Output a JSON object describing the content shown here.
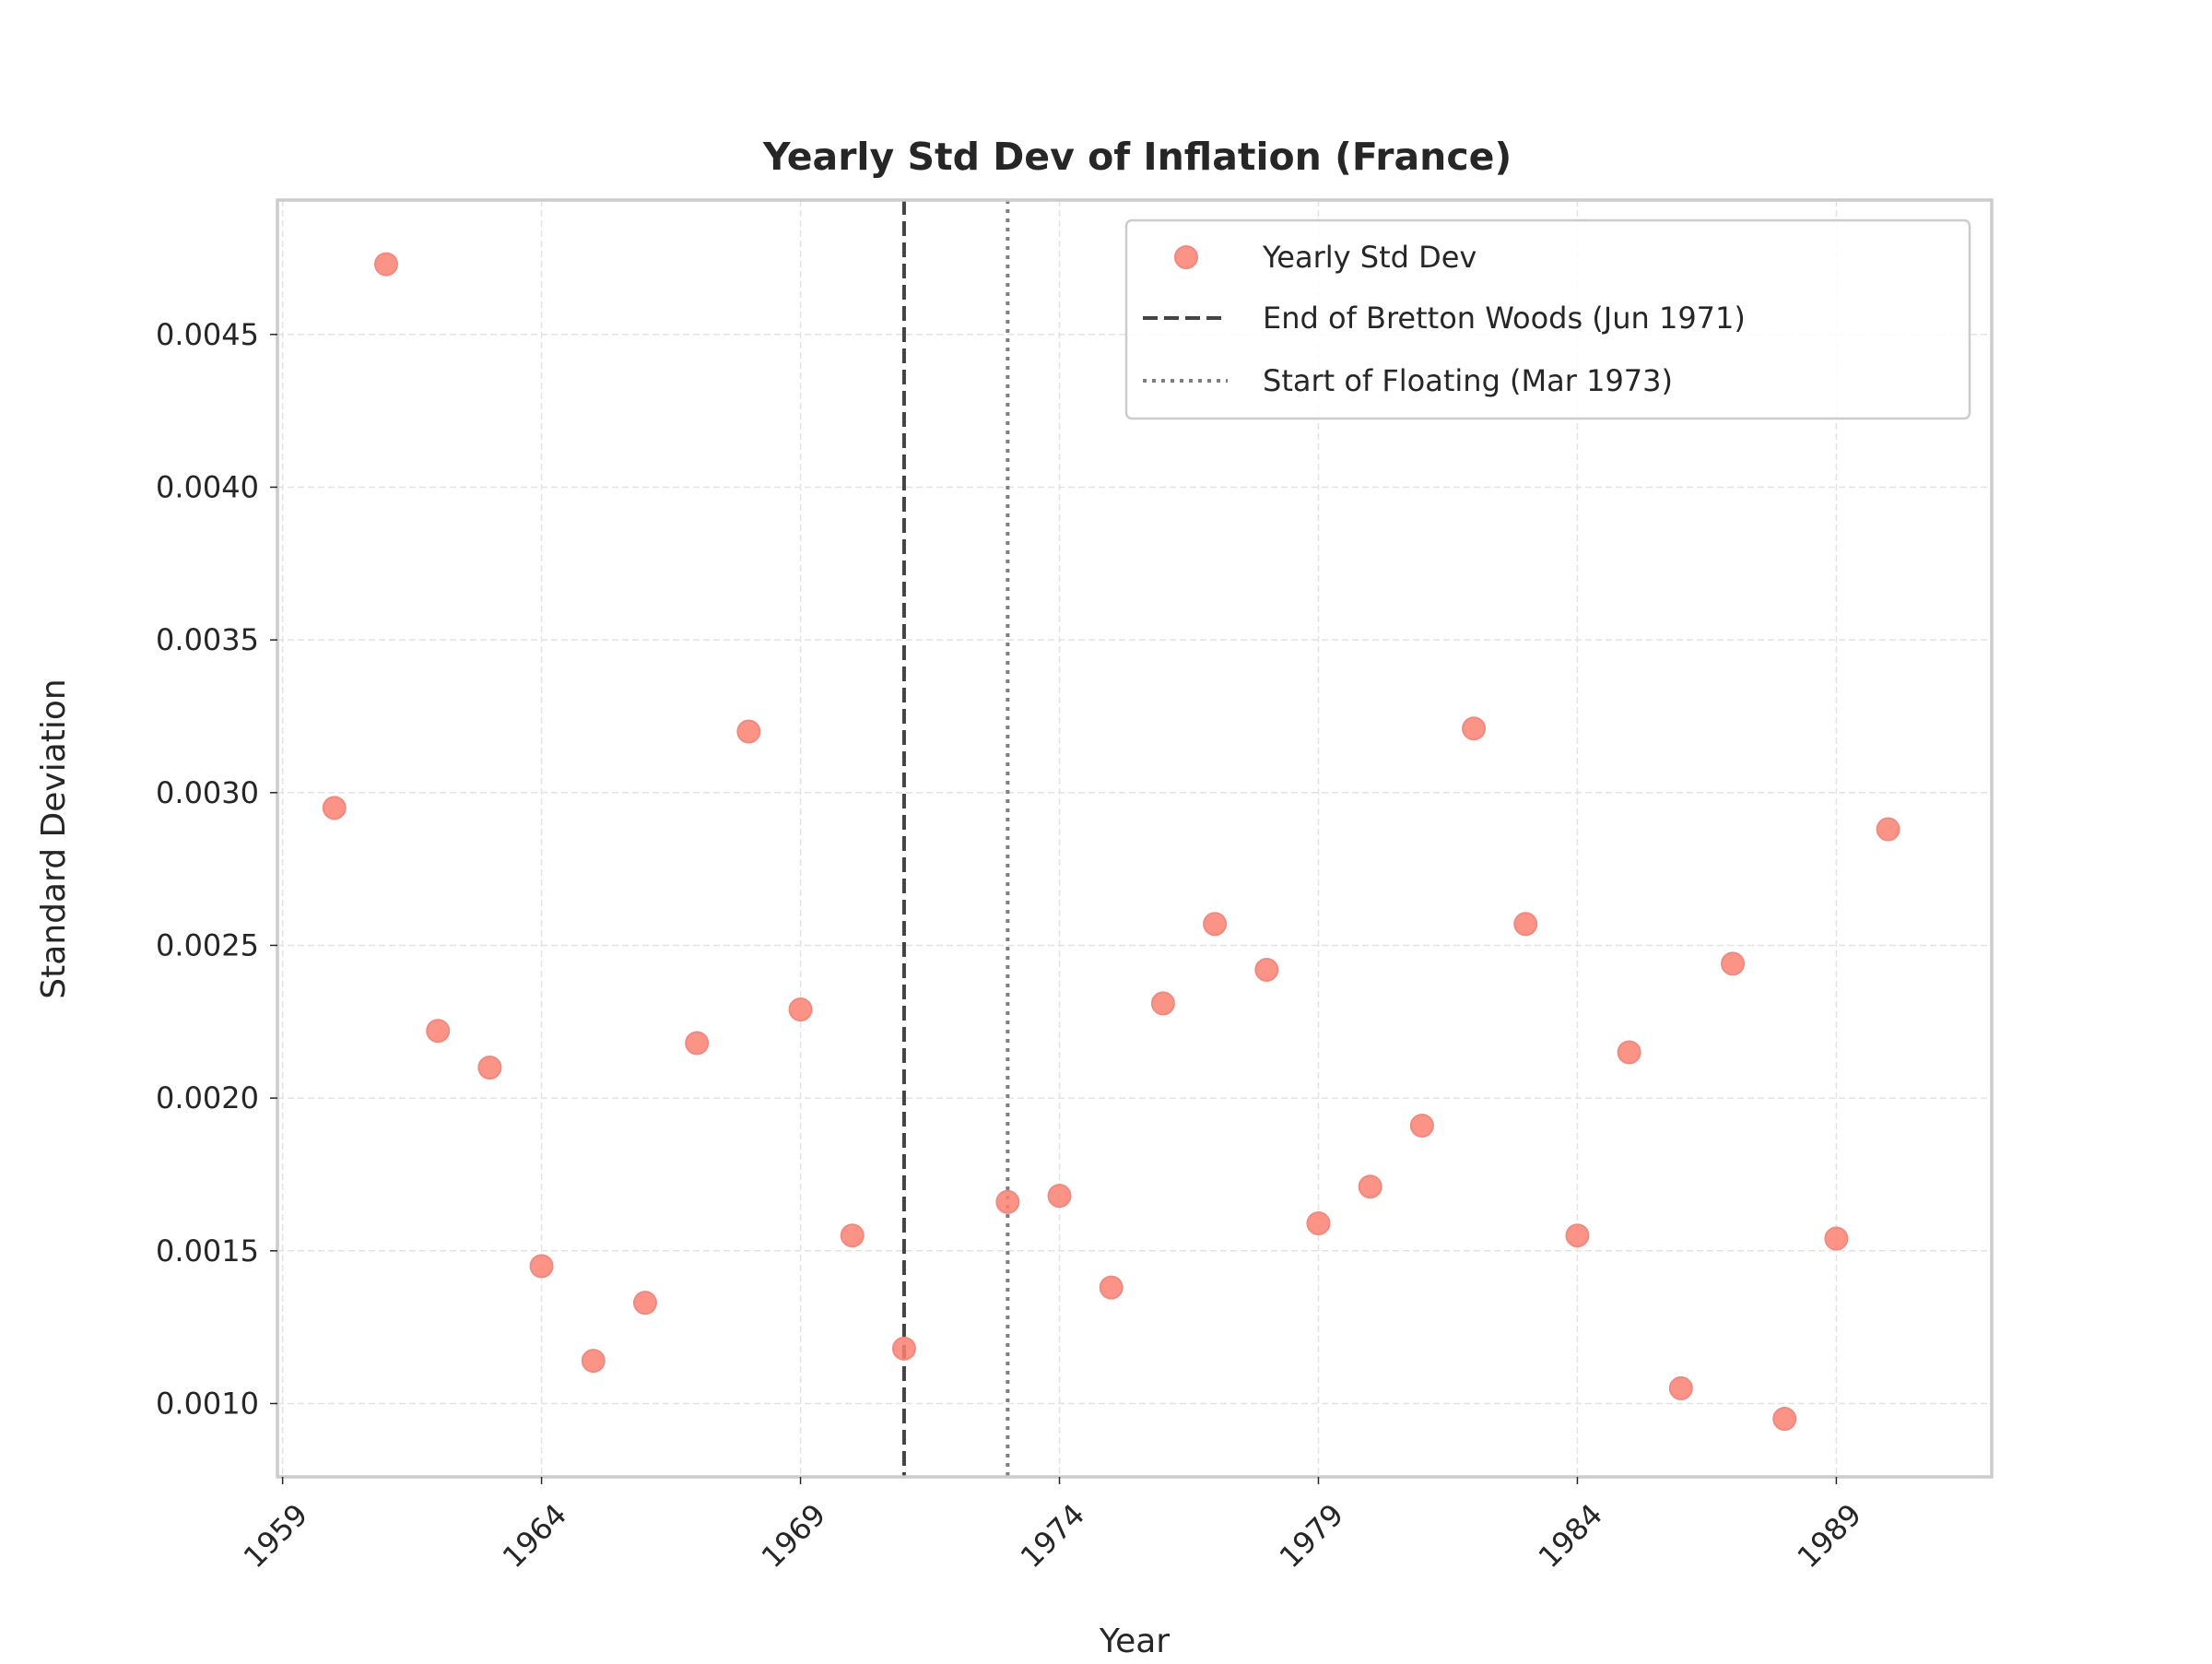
{
  "chart_data": {
    "type": "scatter",
    "title": "Yearly Std Dev of Inflation (France)",
    "xlabel": "Year",
    "ylabel": "Standard Deviation",
    "xlim": [
      1958.9,
      1992.0
    ],
    "ylim": [
      0.00076,
      0.00494
    ],
    "x_ticks": [
      1959,
      1964,
      1969,
      1974,
      1979,
      1984,
      1989
    ],
    "x_tick_labels": [
      "1959",
      "1964",
      "1969",
      "1974",
      "1979",
      "1984",
      "1989"
    ],
    "y_ticks": [
      0.001,
      0.0015,
      0.002,
      0.0025,
      0.003,
      0.0035,
      0.004,
      0.0045
    ],
    "y_tick_labels": [
      "0.0010",
      "0.0015",
      "0.0020",
      "0.0025",
      "0.0030",
      "0.0035",
      "0.0040",
      "0.0045"
    ],
    "grid": true,
    "legend_position": "top-right",
    "series": [
      {
        "name": "Yearly Std Dev",
        "color": "#fa8072",
        "x": [
          1960,
          1961,
          1962,
          1963,
          1964,
          1965,
          1966,
          1967,
          1968,
          1969,
          1970,
          1971,
          1973,
          1974,
          1975,
          1976,
          1977,
          1978,
          1979,
          1980,
          1981,
          1982,
          1983,
          1984,
          1985,
          1986,
          1987,
          1988,
          1989,
          1990
        ],
        "y": [
          0.00295,
          0.00473,
          0.00222,
          0.0021,
          0.00145,
          0.00114,
          0.00133,
          0.00218,
          0.0032,
          0.00229,
          0.00155,
          0.00118,
          0.00166,
          0.00168,
          0.00138,
          0.00231,
          0.00257,
          0.00242,
          0.00159,
          0.00171,
          0.00191,
          0.00321,
          0.00257,
          0.00155,
          0.00215,
          0.00105,
          0.00244,
          0.00095,
          0.00154,
          0.00288
        ]
      }
    ],
    "reference_lines": [
      {
        "name": "End of Bretton Woods (Jun 1971)",
        "x": 1971.0,
        "style": "dashed",
        "color": "#444444"
      },
      {
        "name": "Start of Floating (Mar 1973)",
        "x": 1973.0,
        "style": "dotted",
        "color": "#808080"
      }
    ]
  }
}
